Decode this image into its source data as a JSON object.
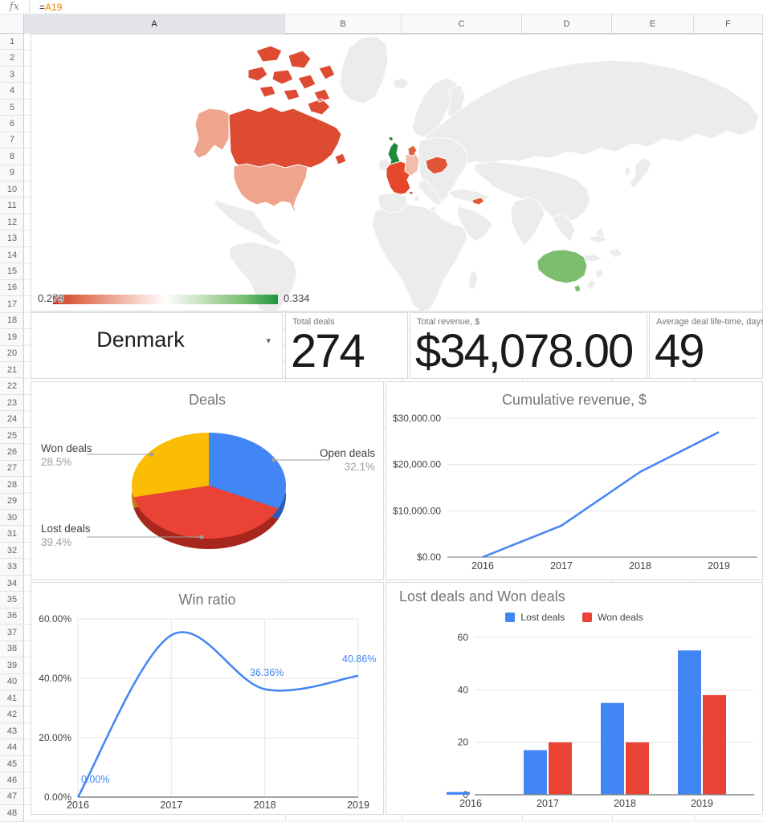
{
  "formula_bar": {
    "fx_label": "fx",
    "formula_operator": "=",
    "formula_reference": "A19"
  },
  "grid": {
    "columns": [
      "A",
      "B",
      "C",
      "D",
      "E",
      "F"
    ],
    "selected_column": "A",
    "row_count": 50
  },
  "selector": {
    "value": "Denmark"
  },
  "kpis": [
    {
      "label": "Total deals",
      "value": "274"
    },
    {
      "label": "Total revenue, $",
      "value": "$34,078.00"
    },
    {
      "label": "Average deal life-time, days",
      "value": "49"
    }
  ],
  "chart_data": [
    {
      "type": "geo",
      "title": "",
      "legend": {
        "min": "0.278",
        "max": "0.334"
      },
      "palette": {
        "sea": "#FFFFFF",
        "land": "#ECECEC",
        "border": "#FFFFFF",
        "gradient_low": "#CC3D1E",
        "gradient_mid": "#FFFFFF",
        "gradient_high": "#1E9640"
      },
      "regions": {
        "canada": "#DC4B32",
        "alaska": "#EFA48D",
        "usa": "#EFA48D",
        "hawaii": "#DC4B32",
        "uk": "#1F8B3B",
        "france": "#E5472B",
        "monaco": "#E5472B",
        "germany": "#F2BEAC",
        "denmark": "#E16040",
        "ukraine": "#DF5535",
        "uae": "#E25B38",
        "australia": "#7CBE6E"
      }
    },
    {
      "type": "pie",
      "title": "Deals",
      "slices": [
        {
          "label": "Open deals",
          "pct_label": "32.1%",
          "value": 32.1,
          "color": "#4285F4",
          "depth_color": "#2B5BB7"
        },
        {
          "label": "Lost deals",
          "pct_label": "39.4%",
          "value": 39.4,
          "color": "#EA4335",
          "depth_color": "#A8271D"
        },
        {
          "label": "Won deals",
          "pct_label": "28.5%",
          "value": 28.5,
          "color": "#FBBC04",
          "depth_color": "#B8860B"
        }
      ]
    },
    {
      "type": "line",
      "title": "Cumulative revenue, $",
      "x": [
        "2016",
        "2017",
        "2018",
        "2019"
      ],
      "values": [
        0,
        6800,
        18400,
        27000
      ],
      "ylim": [
        0,
        30000
      ],
      "yticks": [
        "$0.00",
        "$10,000.00",
        "$20,000.00",
        "$30,000.00"
      ],
      "color": "#4285F4"
    },
    {
      "type": "line",
      "curve": "smooth",
      "title": "Win ratio",
      "x": [
        "2016",
        "2017",
        "2018",
        "2019"
      ],
      "values": [
        0,
        54.5,
        36.36,
        40.86
      ],
      "point_labels": [
        "0.00%",
        "",
        "36.36%",
        "40.86%"
      ],
      "ylim": [
        0,
        60
      ],
      "yticks": [
        "0.00%",
        "20.00%",
        "40.00%",
        "60.00%"
      ],
      "color": "#4285F4"
    },
    {
      "type": "bar",
      "title": "Lost deals and Won deals",
      "categories": [
        "2016",
        "2017",
        "2018",
        "2019"
      ],
      "series": [
        {
          "name": "Lost deals",
          "color": "#4285F4",
          "values": [
            1,
            17,
            35,
            55
          ]
        },
        {
          "name": "Won deals",
          "color": "#EA4335",
          "values": [
            0,
            20,
            20,
            38
          ]
        }
      ],
      "ylim": [
        0,
        60
      ],
      "yticks": [
        "0",
        "20",
        "40",
        "60"
      ]
    }
  ]
}
